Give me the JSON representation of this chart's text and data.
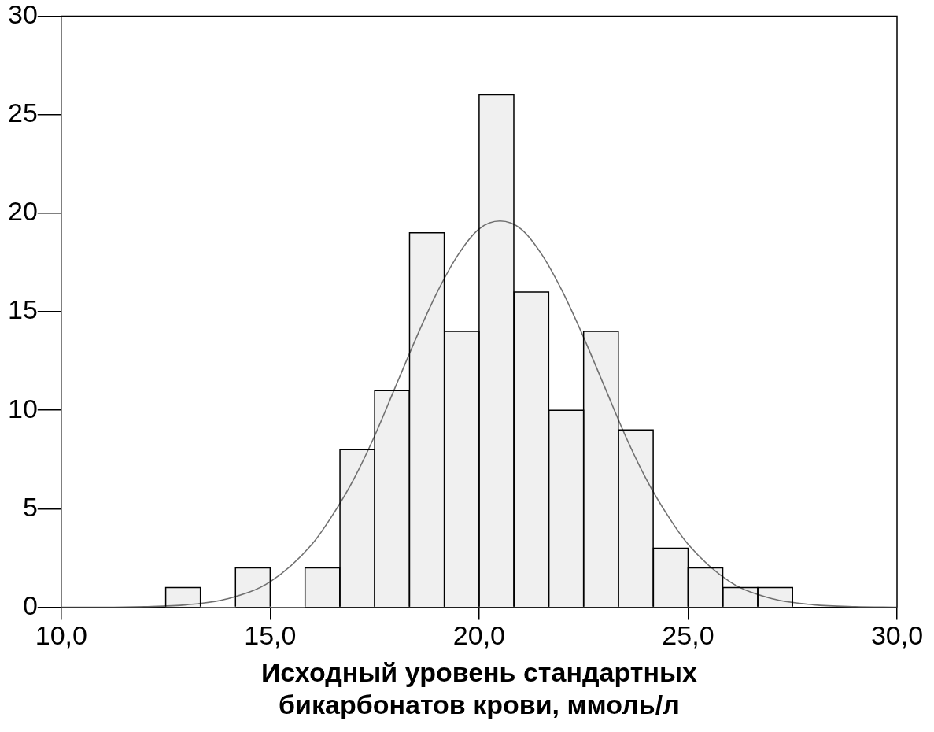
{
  "chart_data": {
    "type": "histogram",
    "xlabel": "Исходный уровень стандартных бикарбонатов крови, ммоль/л",
    "bins": [
      12.5,
      13.33,
      14.17,
      15,
      15.83,
      16.67,
      17.5,
      18.33,
      19.17,
      20,
      20.83,
      21.67,
      22.5,
      23.33,
      24.17,
      25,
      25.83,
      26.67,
      27.5
    ],
    "values": [
      1,
      0,
      2,
      0,
      2,
      8,
      11,
      19,
      14,
      26,
      16,
      10,
      14,
      9,
      3,
      2,
      1,
      1
    ],
    "color": "#f0f0f0",
    "series": [
      {
        "type": "line",
        "color": "#707070",
        "x": [
          10,
          11,
          12,
          13,
          14,
          15,
          16,
          16.5,
          17,
          17.5,
          18,
          18.5,
          19,
          19.5,
          20,
          20.5,
          21,
          21.5,
          22,
          22.5,
          23,
          23.5,
          24,
          24.5,
          25,
          26,
          27,
          28,
          29,
          30
        ],
        "values": [
          0,
          0,
          0.03,
          0.13,
          0.44,
          1.3,
          3.2,
          4.7,
          6.5,
          8.7,
          11.2,
          13.7,
          16,
          17.9,
          19.2,
          19.6,
          19.2,
          17.9,
          16,
          13.7,
          11.2,
          8.7,
          6.5,
          4.7,
          3.2,
          1.3,
          0.44,
          0.13,
          0.03,
          0
        ]
      }
    ],
    "xlim": [
      10,
      30
    ],
    "xticks": [
      {
        "value": 10,
        "label": "10,0"
      },
      {
        "value": 15,
        "label": "15,0"
      },
      {
        "value": 20,
        "label": "20,0"
      },
      {
        "value": 25,
        "label": "25,0"
      },
      {
        "value": 30,
        "label": "30,0"
      }
    ],
    "ylim": [
      0,
      30
    ],
    "yticks": [
      0,
      5,
      10,
      15,
      20,
      25,
      30
    ],
    "grid": false,
    "legend": false,
    "marker": "none",
    "line_style": "solid"
  }
}
